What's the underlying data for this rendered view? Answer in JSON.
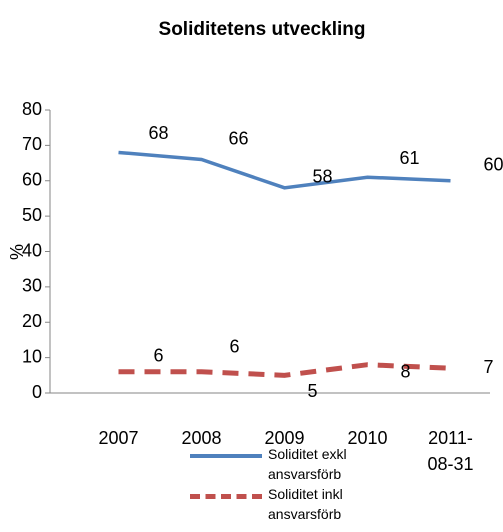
{
  "chart_data": {
    "type": "line",
    "title": "Soliditetens utveckling",
    "ylabel": "%",
    "categories": [
      "2007",
      "2008",
      "2009",
      "2010",
      "2011-08-31"
    ],
    "series": [
      {
        "name": "Soliditet exkl ansvarsförb",
        "color": "#4f81bd",
        "dash": "solid",
        "values": [
          68,
          66,
          58,
          61,
          60
        ]
      },
      {
        "name": "Soliditet inkl ansvarsförb",
        "color": "#c0504d",
        "dash": "dashed",
        "values": [
          6,
          6,
          5,
          8,
          7
        ]
      }
    ],
    "ylim": [
      0,
      80
    ],
    "yticks": [
      0,
      10,
      20,
      30,
      40,
      50,
      60,
      70,
      80
    ],
    "grid": false,
    "legend": "bottom",
    "data_labels": true
  }
}
